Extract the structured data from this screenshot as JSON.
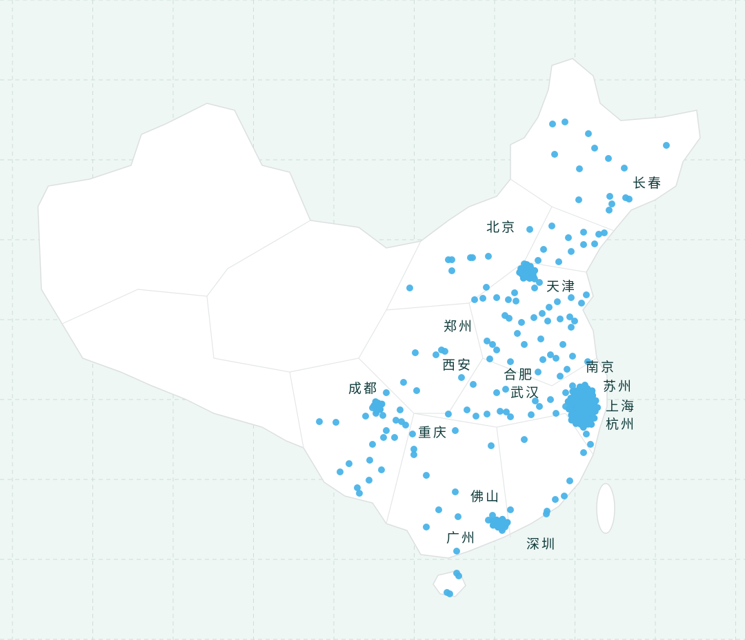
{
  "map": {
    "region": "China",
    "colors": {
      "background": "#eef7f4",
      "land": "#ffffff",
      "border": "#dcdfe0",
      "grid": "#cfdcd8",
      "dot": "#4ab3e8",
      "label": "#0f3a3a"
    },
    "city_labels": [
      "长春",
      "北京",
      "天津",
      "郑州",
      "西安",
      "合肥",
      "南京",
      "苏州",
      "武汉",
      "上海",
      "杭州",
      "成都",
      "重庆",
      "佛山",
      "广州",
      "深圳"
    ]
  }
}
